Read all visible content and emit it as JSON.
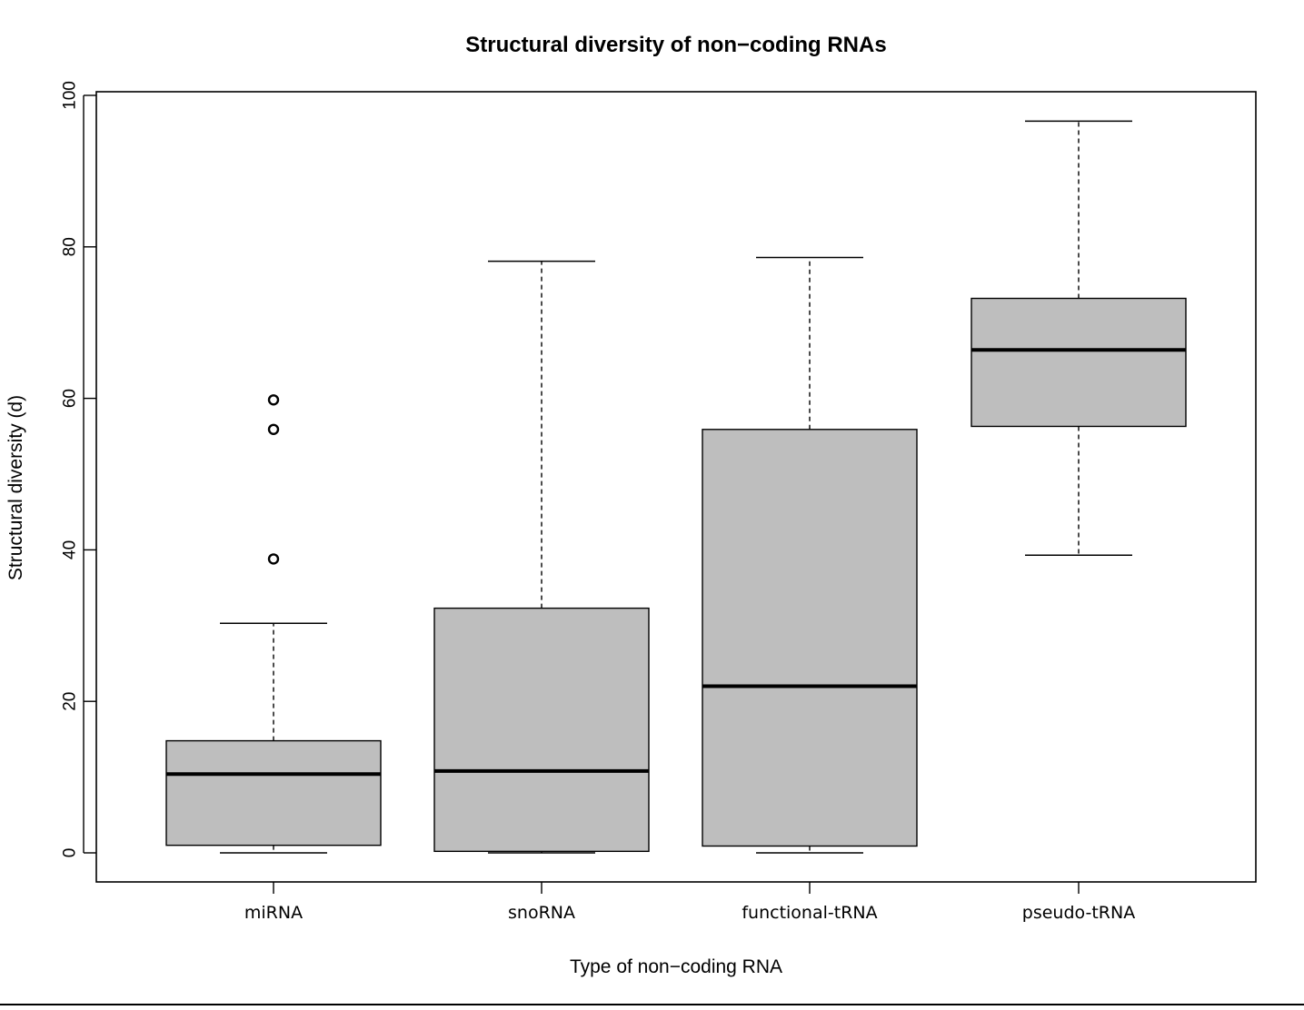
{
  "chart_data": {
    "type": "boxplot",
    "title": "Structural diversity of non−coding RNAs",
    "xlabel": "Type of non−coding RNA",
    "ylabel": "Structural diversity (d)",
    "ylim": [
      -4,
      100
    ],
    "yticks": [
      "0",
      "20",
      "40",
      "60",
      "80",
      "100"
    ],
    "grid": false,
    "box_fill": "#bebebe",
    "categories": [
      "miRNA",
      "snoRNA",
      "functional-tRNA",
      "pseudo-tRNA"
    ],
    "boxes": [
      {
        "category": "miRNA",
        "whisker_low": 0,
        "q1": 1.0,
        "median": 10.4,
        "q3": 14.8,
        "whisker_high": 30.3,
        "outliers": [
          38.8,
          55.9,
          59.8
        ]
      },
      {
        "category": "snoRNA",
        "whisker_low": 0,
        "q1": 0.2,
        "median": 10.8,
        "q3": 32.3,
        "whisker_high": 78.1,
        "outliers": []
      },
      {
        "category": "functional-tRNA",
        "whisker_low": 0,
        "q1": 0.9,
        "median": 22.0,
        "q3": 55.9,
        "whisker_high": 78.6,
        "outliers": []
      },
      {
        "category": "pseudo-tRNA",
        "whisker_low": 39.3,
        "q1": 56.3,
        "median": 66.4,
        "q3": 73.2,
        "whisker_high": 96.6,
        "outliers": []
      }
    ]
  }
}
